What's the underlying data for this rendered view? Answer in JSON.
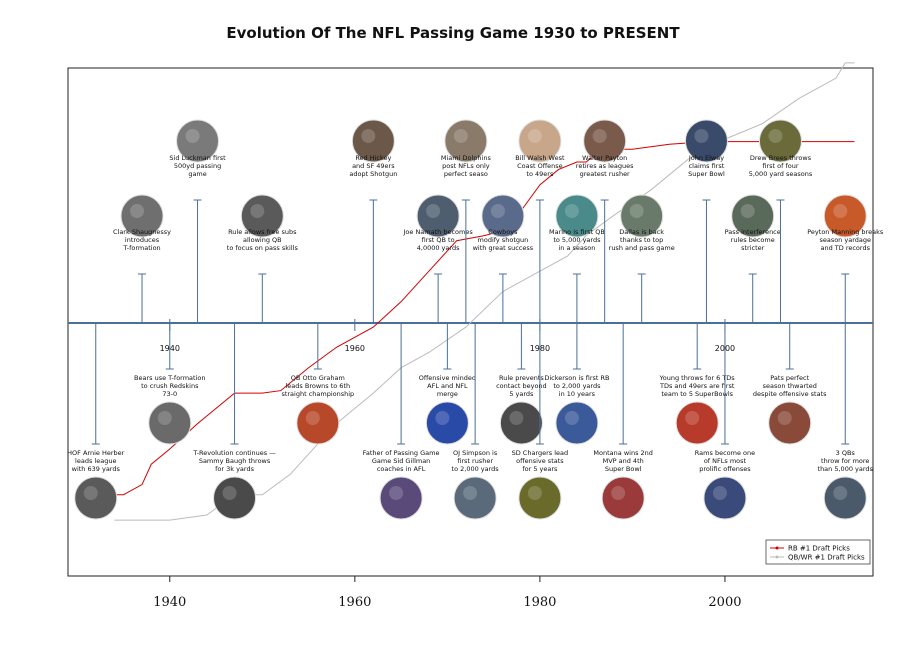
{
  "title": "Evolution Of The NFL Passing Game 1930 to PRESENT",
  "chart_data": {
    "type": "line",
    "xlim": [
      1929,
      2016
    ],
    "x_ticks": [
      1940,
      1960,
      1980,
      2000
    ],
    "inner_ticks": [
      "1940",
      "1960",
      "1980",
      "2000"
    ],
    "ylim": [
      0,
      10
    ],
    "grid": false,
    "legend_position": "bottom-right",
    "series": [
      {
        "name": "RB #1 Draft Picks",
        "color": "#d40000",
        "x": [
          1930,
          1935,
          1937,
          1938,
          1940,
          1943,
          1947,
          1950,
          1952,
          1955,
          1958,
          1962,
          1965,
          1968,
          1971,
          1974,
          1976,
          1978,
          1980,
          1982,
          1984,
          1985,
          1986,
          1988,
          1990,
          1992,
          1994,
          1998,
          2002,
          2006,
          2010,
          2014
        ],
        "y": [
          1.6,
          1.6,
          1.8,
          2.2,
          2.5,
          3.0,
          3.6,
          3.6,
          3.65,
          4.1,
          4.5,
          4.9,
          5.4,
          6.0,
          6.6,
          6.7,
          6.8,
          7.2,
          7.7,
          8.0,
          8.15,
          8.15,
          8.3,
          8.4,
          8.4,
          8.45,
          8.5,
          8.55,
          8.55,
          8.55,
          8.55,
          8.55
        ]
      },
      {
        "name": "QB/WR #1 Draft Picks",
        "color": "#bbbbbb",
        "x": [
          1934,
          1940,
          1944,
          1947,
          1950,
          1953,
          1955,
          1958,
          1962,
          1965,
          1968,
          1972,
          1976,
          1980,
          1983,
          1985,
          1988,
          1992,
          1996,
          2000,
          2004,
          2008,
          2012,
          2013,
          2014
        ],
        "y": [
          1.1,
          1.1,
          1.2,
          1.6,
          1.6,
          2.0,
          2.4,
          3.0,
          3.6,
          4.1,
          4.4,
          4.9,
          5.6,
          6.0,
          6.3,
          6.7,
          7.1,
          7.6,
          8.2,
          8.6,
          8.9,
          9.4,
          9.8,
          10.1,
          10.1
        ]
      }
    ],
    "annotations_above": [
      {
        "year": 1937,
        "text": [
          "Clark Shaugnessy",
          "introduces",
          "T-formation"
        ],
        "thumb_color": "#6f6f6f",
        "level": "low"
      },
      {
        "year": 1943,
        "text": [
          "Sid Luckman first",
          "500yd passing",
          "game"
        ],
        "thumb_color": "#7a7a7a",
        "level": "high"
      },
      {
        "year": 1950,
        "text": [
          "Rule allows free subs",
          "allowing QB",
          "to focus on pass skills"
        ],
        "thumb_color": "#5a5a5a",
        "level": "low"
      },
      {
        "year": 1962,
        "text": [
          "Red Hickey",
          "and SF 49ers",
          "adopt Shotgun"
        ],
        "thumb_color": "#6b5848",
        "level": "high"
      },
      {
        "year": 1969,
        "text": [
          "Joe Namath becomes",
          "first QB to",
          "4,0000 yards"
        ],
        "thumb_color": "#4e5e6e",
        "level": "low"
      },
      {
        "year": 1972,
        "text": [
          "Miami Dolphins",
          "post NFLs only",
          "perfect seaso"
        ],
        "thumb_color": "#8a7a6a",
        "level": "high"
      },
      {
        "year": 1976,
        "text": [
          "Cowboys",
          "modify shotgun",
          "with great success"
        ],
        "thumb_color": "#5a6a8a",
        "level": "low"
      },
      {
        "year": 1980,
        "text": [
          "Bill Walsh West",
          "Coast Offense",
          "to 49ers"
        ],
        "thumb_color": "#c8a68a",
        "level": "high"
      },
      {
        "year": 1984,
        "text": [
          "Marino is first QB",
          "to 5,000 yards",
          "in a season"
        ],
        "thumb_color": "#4a8a8a",
        "level": "low"
      },
      {
        "year": 1987,
        "text": [
          "Walter Payton",
          "retires as leagues",
          "greatest rusher"
        ],
        "thumb_color": "#7a5a4a",
        "level": "high"
      },
      {
        "year": 1991,
        "text": [
          "Dallas is back",
          "thanks to top",
          "rush and pass game"
        ],
        "thumb_color": "#6a7a6a",
        "level": "low"
      },
      {
        "year": 1998,
        "text": [
          "John Elway",
          "claims first",
          "Super Bowl"
        ],
        "thumb_color": "#3a4a6a",
        "level": "high"
      },
      {
        "year": 2003,
        "text": [
          "Pass interference",
          "rules become",
          "stricter"
        ],
        "thumb_color": "#5a6a5a",
        "level": "low"
      },
      {
        "year": 2006,
        "text": [
          "Drew Brees throws",
          "first of four",
          "5,000 yard seasons"
        ],
        "thumb_color": "#6a6a3a",
        "level": "high"
      },
      {
        "year": 2013,
        "text": [
          "Peyton Manning breaks",
          "season yardage",
          "and TD records"
        ],
        "thumb_color": "#c85a2a",
        "level": "low"
      }
    ],
    "annotations_below": [
      {
        "year": 1932,
        "text": [
          "HOF Arnie Herber",
          "leads league",
          "with 639 yards"
        ],
        "thumb_color": "#5a5a5a",
        "level": "low"
      },
      {
        "year": 1940,
        "text": [
          "Bears use T-formation",
          "to crush Redskins",
          "73-0"
        ],
        "thumb_color": "#6a6a6a",
        "level": "high"
      },
      {
        "year": 1947,
        "text": [
          "T-Revolution continues —",
          "Sammy Baugh throws",
          "for 3k yards"
        ],
        "thumb_color": "#4a4a4a",
        "level": "low"
      },
      {
        "year": 1956,
        "text": [
          "QB Otto Graham",
          "leads Browns to 6th",
          "straight championship"
        ],
        "thumb_color": "#b8482a",
        "level": "high"
      },
      {
        "year": 1965,
        "text": [
          "Father of Passing Game",
          "Game Sid Gillman",
          "coaches in AFL"
        ],
        "thumb_color": "#5a4a7a",
        "level": "low"
      },
      {
        "year": 1970,
        "text": [
          "Offensive minded",
          "AFL and NFL",
          "merge"
        ],
        "thumb_color": "#2a4aa8",
        "level": "high"
      },
      {
        "year": 1973,
        "text": [
          "OJ Simpson is",
          "first rusher",
          "to 2,000 yards"
        ],
        "thumb_color": "#5a6a7a",
        "level": "low"
      },
      {
        "year": 1978,
        "text": [
          "Rule prevents",
          "contact beyond",
          "5 yards"
        ],
        "thumb_color": "#4a4a4a",
        "level": "high"
      },
      {
        "year": 1980,
        "text": [
          "SD Chargers lead",
          "offensive stats",
          "for 5 years"
        ],
        "thumb_color": "#6a6a2a",
        "level": "low"
      },
      {
        "year": 1984,
        "text": [
          "Dickerson is first RB",
          "to 2,000 yards",
          "in 10 years"
        ],
        "thumb_color": "#3a5a9a",
        "level": "high"
      },
      {
        "year": 1989,
        "text": [
          "Montana wins 2nd",
          "MVP and 4th",
          "Super Bowl"
        ],
        "thumb_color": "#9a3a3a",
        "level": "low"
      },
      {
        "year": 1997,
        "text": [
          "Young throws for 6 TDs",
          "TDs and 49ers are first",
          "team to 5 SuperBowls"
        ],
        "thumb_color": "#b83a2a",
        "level": "high"
      },
      {
        "year": 2000,
        "text": [
          "Rams become one",
          "of NFLs most",
          "prolific offenses"
        ],
        "thumb_color": "#3a4a7a",
        "level": "low"
      },
      {
        "year": 2007,
        "text": [
          "Pats perfect",
          "season thwarted",
          "despite offensive stats"
        ],
        "thumb_color": "#8a4a3a",
        "level": "high"
      },
      {
        "year": 2013,
        "text": [
          "3 QBs",
          "throw for more",
          "than 5,000 yards"
        ],
        "thumb_color": "#4a5a6a",
        "level": "low"
      }
    ]
  }
}
